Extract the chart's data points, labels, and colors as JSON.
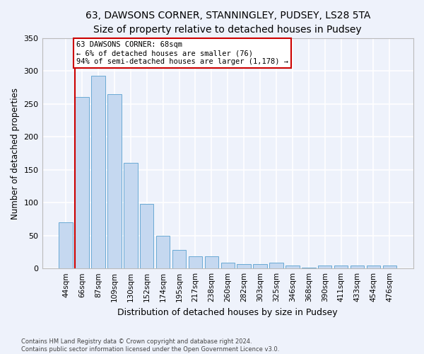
{
  "title": "63, DAWSONS CORNER, STANNINGLEY, PUDSEY, LS28 5TA",
  "subtitle": "Size of property relative to detached houses in Pudsey",
  "xlabel": "Distribution of detached houses by size in Pudsey",
  "ylabel": "Number of detached properties",
  "categories": [
    "44sqm",
    "66sqm",
    "87sqm",
    "109sqm",
    "130sqm",
    "152sqm",
    "174sqm",
    "195sqm",
    "217sqm",
    "238sqm",
    "260sqm",
    "282sqm",
    "303sqm",
    "325sqm",
    "346sqm",
    "368sqm",
    "390sqm",
    "411sqm",
    "433sqm",
    "454sqm",
    "476sqm"
  ],
  "values": [
    70,
    260,
    293,
    265,
    160,
    98,
    50,
    28,
    18,
    18,
    9,
    7,
    7,
    9,
    5,
    1,
    4,
    4,
    4,
    4,
    4
  ],
  "bar_color": "#c5d8f0",
  "bar_edge_color": "#6aaad4",
  "annotation_line1": "63 DAWSONS CORNER: 68sqm",
  "annotation_line2": "← 6% of detached houses are smaller (76)",
  "annotation_line3": "94% of semi-detached houses are larger (1,178) →",
  "annotation_box_color": "#ffffff",
  "annotation_box_edge_color": "#cc0000",
  "vline_color": "#cc0000",
  "footer1": "Contains HM Land Registry data © Crown copyright and database right 2024.",
  "footer2": "Contains public sector information licensed under the Open Government Licence v3.0.",
  "ylim": [
    0,
    350
  ],
  "yticks": [
    0,
    50,
    100,
    150,
    200,
    250,
    300,
    350
  ],
  "background_color": "#eef2fb",
  "grid_color": "#ffffff",
  "title_fontsize": 10,
  "subtitle_fontsize": 9,
  "figwidth": 6.0,
  "figheight": 5.0
}
